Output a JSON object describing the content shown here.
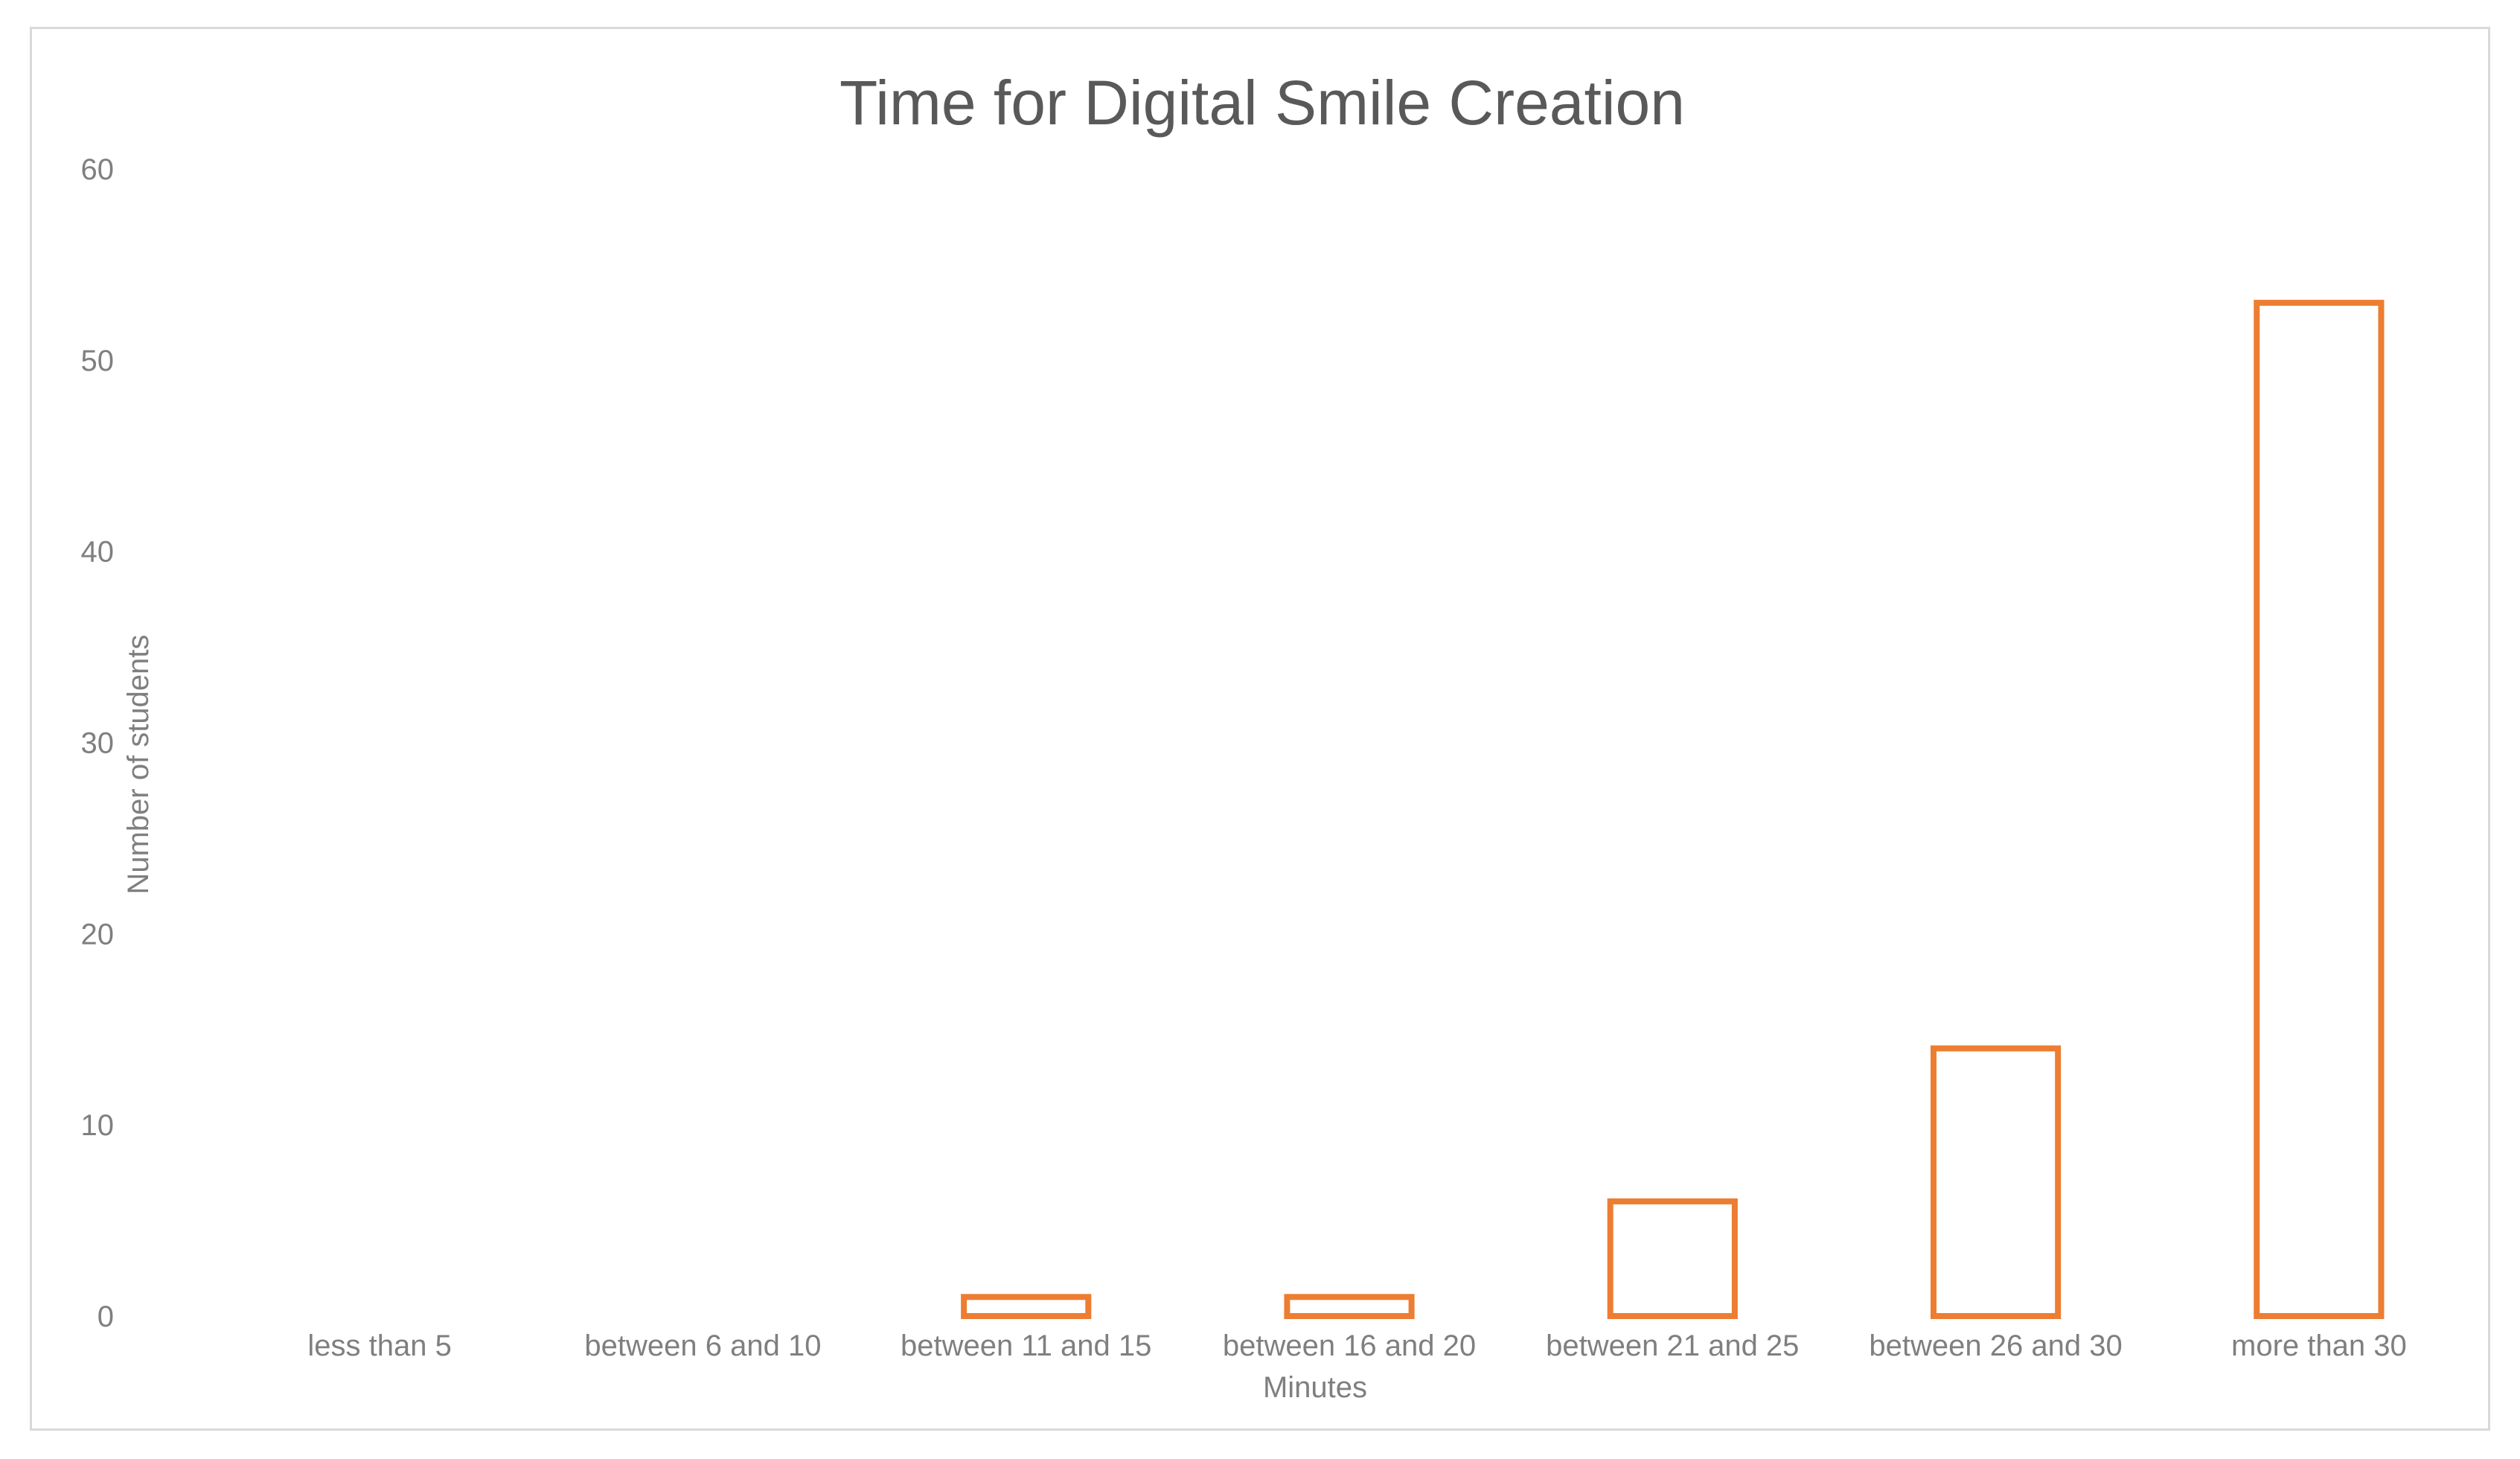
{
  "chart_data": {
    "type": "bar",
    "title": "Time for Digital Smile Creation",
    "xlabel": "Minutes",
    "ylabel": "Number of students",
    "categories": [
      "less than 5",
      "between 6 and 10",
      "between 11 and 15",
      "between 16 and 20",
      "between 21 and 25",
      "between 26 and 30",
      "more than 30"
    ],
    "values": [
      0,
      0,
      1,
      1,
      6,
      14,
      53
    ],
    "ylim": [
      0,
      60
    ],
    "yticks": [
      0,
      10,
      20,
      30,
      40,
      50,
      60
    ],
    "grid": false,
    "legend": "none",
    "bar_style": "outline",
    "colors": {
      "bar_stroke": "#ED7D31",
      "bar_fill": "#FFFFFF",
      "text": "#7F7F7F",
      "title": "#595959",
      "border": "#D9D9D9"
    }
  }
}
